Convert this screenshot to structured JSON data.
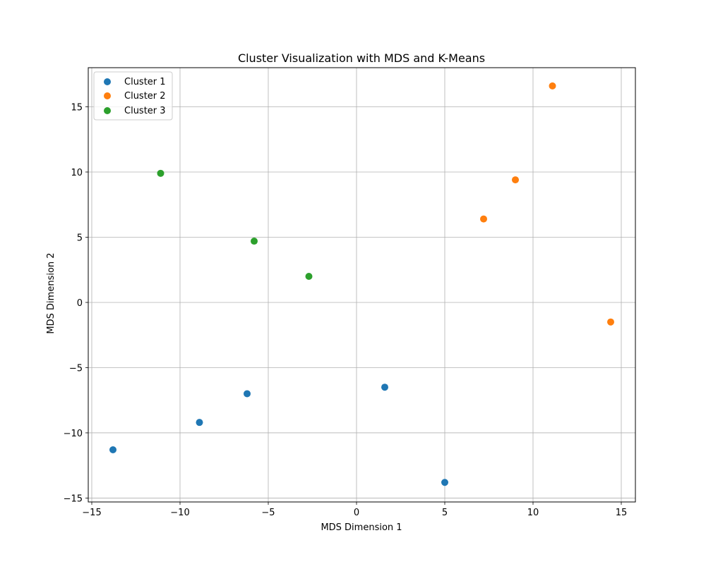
{
  "chart_data": {
    "type": "scatter",
    "title": "Cluster Visualization with MDS and K-Means",
    "xlabel": "MDS Dimension 1",
    "ylabel": "MDS Dimension 2",
    "xlim": [
      -15.2,
      15.8
    ],
    "ylim": [
      -15.3,
      18.0
    ],
    "x_ticks": [
      -15,
      -10,
      -5,
      0,
      5,
      10,
      15
    ],
    "y_ticks": [
      -15,
      -10,
      -5,
      0,
      5,
      10,
      15
    ],
    "x_tick_labels": [
      "−15",
      "−10",
      "−5",
      "0",
      "5",
      "10",
      "15"
    ],
    "y_tick_labels": [
      "−15",
      "−10",
      "−5",
      "0",
      "5",
      "10",
      "15"
    ],
    "grid": true,
    "legend_position": "upper-left",
    "series": [
      {
        "name": "Cluster 1",
        "color": "#1f77b4",
        "points": [
          {
            "x": -13.8,
            "y": -11.3
          },
          {
            "x": -8.9,
            "y": -9.2
          },
          {
            "x": -6.2,
            "y": -7.0
          },
          {
            "x": 1.6,
            "y": -6.5
          },
          {
            "x": 5.0,
            "y": -13.8
          }
        ]
      },
      {
        "name": "Cluster 2",
        "color": "#ff7f0e",
        "points": [
          {
            "x": 7.2,
            "y": 6.4
          },
          {
            "x": 9.0,
            "y": 9.4
          },
          {
            "x": 11.1,
            "y": 16.6
          },
          {
            "x": 14.4,
            "y": -1.5
          }
        ]
      },
      {
        "name": "Cluster 3",
        "color": "#2ca02c",
        "points": [
          {
            "x": -11.1,
            "y": 9.9
          },
          {
            "x": -5.8,
            "y": 4.7
          },
          {
            "x": -2.7,
            "y": 2.0
          }
        ]
      }
    ]
  }
}
